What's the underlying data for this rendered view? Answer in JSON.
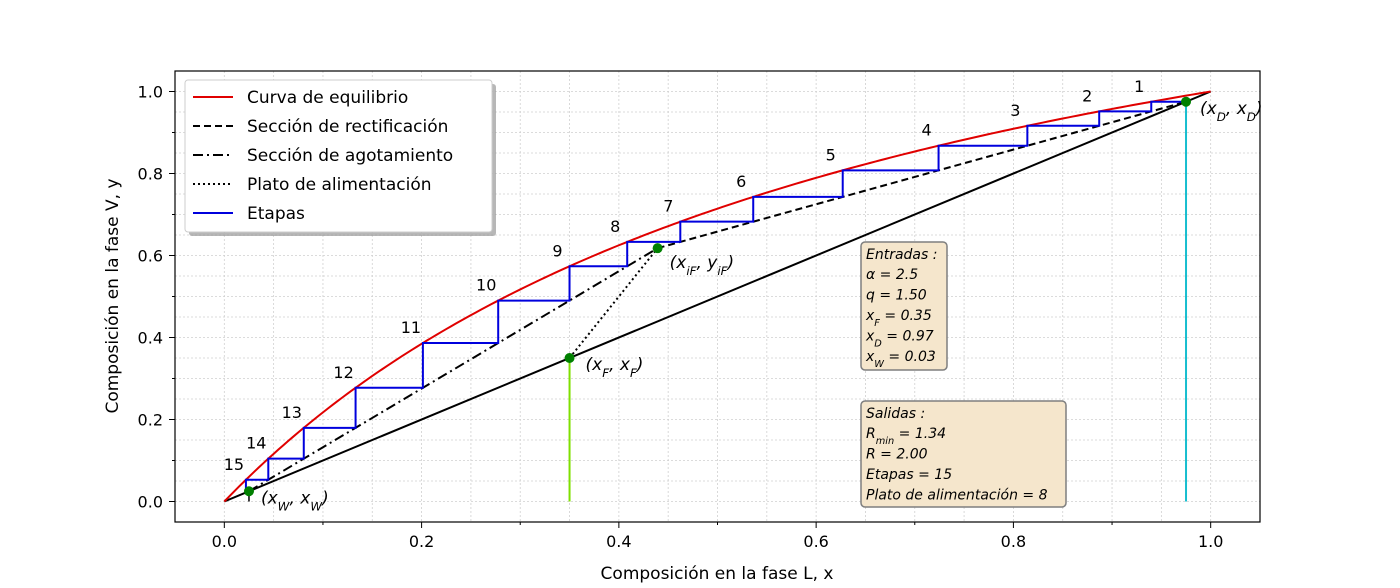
{
  "chart_data": {
    "type": "line",
    "title": "",
    "xlabel": "Composición en la fase L, x",
    "ylabel": "Composición en la fase V, y",
    "xlim": [
      -0.05,
      1.05
    ],
    "ylim": [
      -0.05,
      1.05
    ],
    "x_ticks": [
      0.0,
      0.2,
      0.4,
      0.6,
      0.8,
      1.0
    ],
    "x_tick_labels": [
      "0.0",
      "0.2",
      "0.4",
      "0.6",
      "0.8",
      "1.0"
    ],
    "y_ticks": [
      0.0,
      0.2,
      0.4,
      0.6,
      0.8,
      1.0
    ],
    "y_tick_labels": [
      "0.0",
      "0.2",
      "0.4",
      "0.6",
      "0.8",
      "1.0"
    ],
    "grid": true,
    "legend_position": "top-left",
    "colors": {
      "equilibrium": "#e00000",
      "stages": "#0000dd",
      "diagonal": "#000000",
      "points": "#008000",
      "feed_vertical": "#7fe000",
      "distillate_vertical": "#17becf",
      "box_fill": "#f5e6cc",
      "box_border": "#7f7f7f"
    },
    "parameters": {
      "alpha": 2.5,
      "q": 1.5,
      "xF": 0.35,
      "xD": 0.975,
      "xW": 0.025,
      "R": 2.0,
      "feed_stage": 8
    },
    "legend": [
      {
        "label": "Curva de equilibrio",
        "style": "solid",
        "color": "#e00000"
      },
      {
        "label": "Sección de rectificación",
        "style": "dashed",
        "color": "#000000"
      },
      {
        "label": "Sección de agotamiento",
        "style": "dashdot",
        "color": "#000000"
      },
      {
        "label": "Plato de alimentación",
        "style": "dotted",
        "color": "#000000"
      },
      {
        "label": "Etapas",
        "style": "solid",
        "color": "#0000dd"
      }
    ],
    "point_labels": {
      "distillate": "(x_D, x_D)",
      "bottoms": "(x_W, x_W)",
      "feed": "(x_F, x_F)",
      "intersection": "(x_iF, y_iF)"
    },
    "stage_numbers": [
      "1",
      "2",
      "3",
      "4",
      "5",
      "6",
      "7",
      "8",
      "9",
      "10",
      "11",
      "12",
      "13",
      "14",
      "15"
    ],
    "inputs_box": {
      "title": "Entradas :",
      "lines": [
        "α = 2.5",
        "q = 1.50",
        "x_F = 0.35",
        "x_D = 0.97",
        "x_W = 0.03"
      ]
    },
    "outputs_box": {
      "title": "Salidas :",
      "lines": [
        "R_min = 1.34",
        "R = 2.00",
        "Etapas = 15",
        "Plato de alimentación = 8"
      ]
    }
  }
}
